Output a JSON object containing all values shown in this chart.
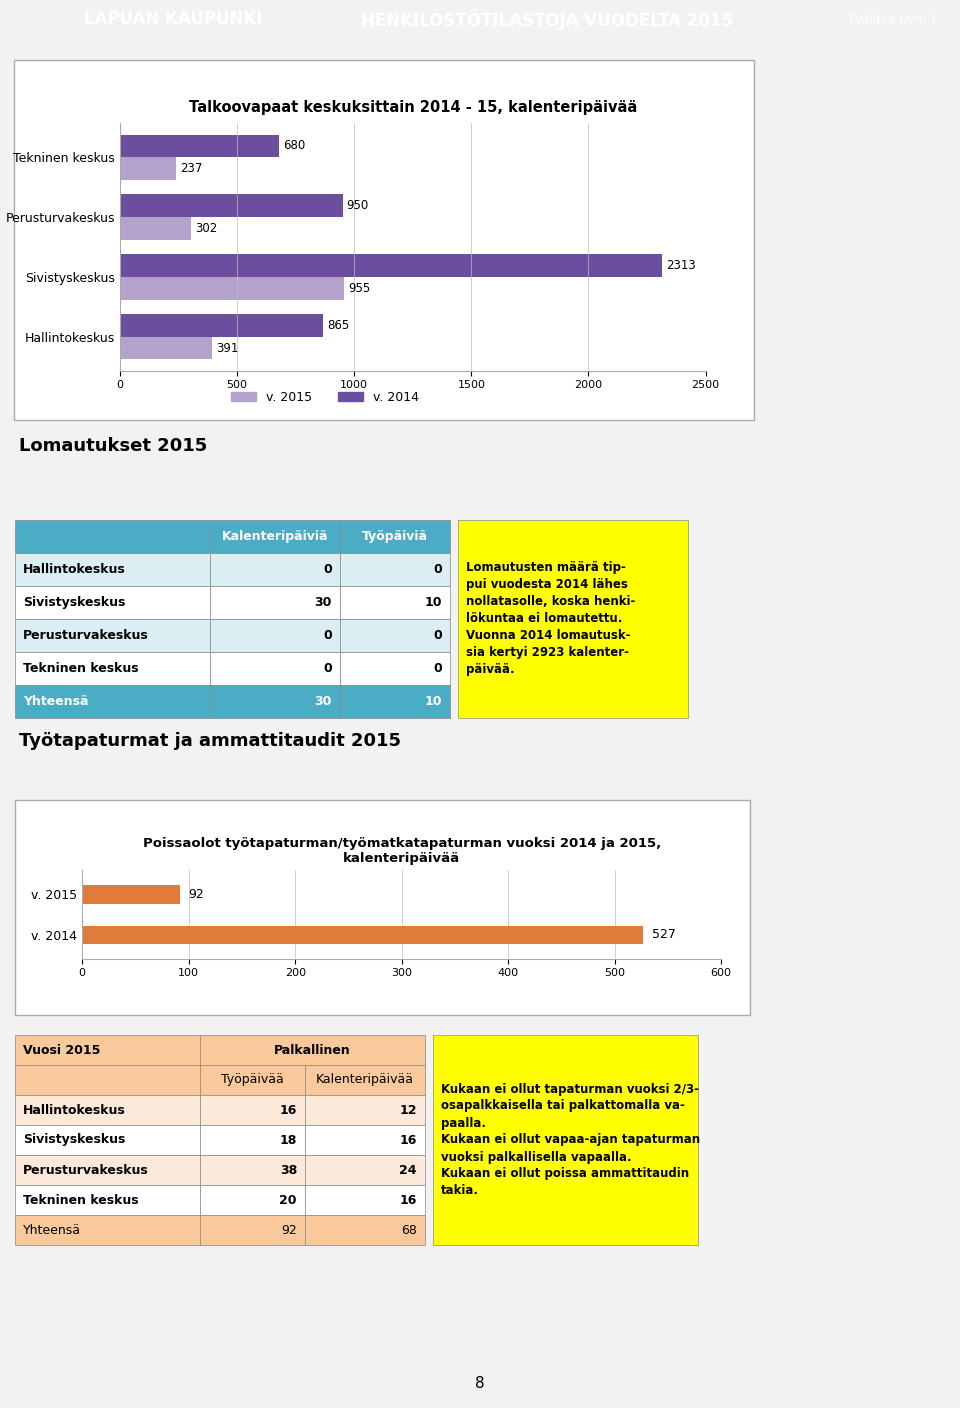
{
  "header_bg": "#5b9bd5",
  "header_title_left": "LAPUAN KAUPUNKI",
  "header_title_center": "HENKILÖSTÖTILASTOJA VUODELTA 2015",
  "header_title_right": "[Valitse pvm.]",
  "chart1_title": "Talkoovapaat keskuksittain 2014 - 15, kalenteripäivää",
  "chart1_categories": [
    "Tekninen keskus",
    "Perusturvakeskus",
    "Sivistyskeskus",
    "Hallintokeskus"
  ],
  "chart1_2015": [
    237,
    302,
    955,
    391
  ],
  "chart1_2014": [
    680,
    950,
    2313,
    865
  ],
  "chart1_color_2015": "#b3a3cc",
  "chart1_color_2014": "#6b4f9e",
  "chart1_xlim": [
    0,
    2500
  ],
  "chart1_xticks": [
    0,
    500,
    1000,
    1500,
    2000,
    2500
  ],
  "section2_title": "Lomautukset 2015",
  "lomautukset_headers": [
    "",
    "Kalenteripäiviä",
    "Työpäiviä"
  ],
  "lomautukset_rows": [
    [
      "Hallintokeskus",
      "0",
      "0"
    ],
    [
      "Sivistyskeskus",
      "30",
      "10"
    ],
    [
      "Perusturvakeskus",
      "0",
      "0"
    ],
    [
      "Tekninen keskus",
      "0",
      "0"
    ],
    [
      "Yhteensä",
      "30",
      "10"
    ]
  ],
  "lom_header_bg": "#4bacc6",
  "lom_row_bgs": [
    "#daeef3",
    "#ffffff",
    "#daeef3",
    "#ffffff"
  ],
  "lom_yhteensa_bg": "#4bacc6",
  "lom_text_bg": "#ffff00",
  "lom_text": "Lomautusten määrä tip-\npui vuodesta 2014 lähes\nnollatasolle, koska henki-\nlökuntaa ei lomautettu.\nVuonna 2014 lomautusk-\nsia kertyi 2923 kalenter-\npäivää.",
  "section3_title": "Työtapaturmat ja ammattitaudit 2015",
  "chart2_title": "Poissaolot työtapaturman/työmatkatapaturman vuoksi 2014 ja 2015,\nkalenteripäivää",
  "chart2_2015": 92,
  "chart2_2014": 527,
  "chart2_color": "#e07b39",
  "chart2_xlim": [
    0,
    600
  ],
  "chart2_xticks": [
    0,
    100,
    200,
    300,
    400,
    500,
    600
  ],
  "table2_rows": [
    [
      "Hallintokeskus",
      "16",
      "12"
    ],
    [
      "Sivistyskeskus",
      "18",
      "16"
    ],
    [
      "Perusturvakeskus",
      "38",
      "24"
    ],
    [
      "Tekninen keskus",
      "20",
      "16"
    ],
    [
      "Yhteensä",
      "92",
      "68"
    ]
  ],
  "table2_header_bg": "#f9c89b",
  "table2_title_bg": "#f9c89b",
  "table2_row_bgs": [
    "#fde9d9",
    "#ffffff",
    "#fde9d9",
    "#ffffff"
  ],
  "table2_yhteensa_bg": "#f9c89b",
  "table2_text_bg": "#ffff00",
  "table2_text": "Kukaan ei ollut tapaturman vuoksi 2/3-\nosapalkkaisella tai palkattomalla va-\npaalla.\nKukaan ei ollut vapaa-ajan tapaturman\nvuoksi palkallisella vapaalla.\nKukaan ei ollut poissa ammattitaudin\ntakia.",
  "page_number": "8",
  "bg_color": "#f2f2f2"
}
